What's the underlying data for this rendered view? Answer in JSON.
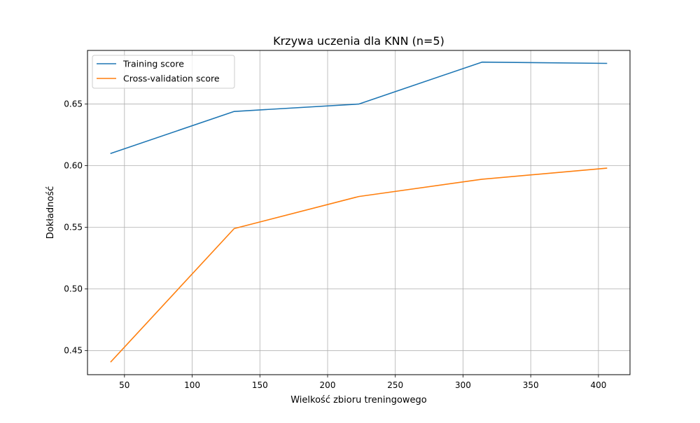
{
  "chart_data": {
    "type": "line",
    "title": "Krzywa uczenia dla KNN (n=5)",
    "xlabel": "Wielkość zbioru treningowego",
    "ylabel": "Dokładność",
    "xlim": [
      22.7,
      423.3
    ],
    "ylim": [
      0.4305,
      0.6935
    ],
    "xticks": [
      50,
      100,
      150,
      200,
      250,
      300,
      350,
      400
    ],
    "yticks": [
      0.45,
      0.5,
      0.55,
      0.6,
      0.65
    ],
    "ytick_labels": [
      "0.45",
      "0.50",
      "0.55",
      "0.60",
      "0.65"
    ],
    "grid": true,
    "legend_position": "upper left",
    "x": [
      40,
      131,
      223,
      314,
      406
    ],
    "series": [
      {
        "name": "Training score",
        "color": "#1f77b4",
        "values": [
          0.61,
          0.644,
          0.65,
          0.684,
          0.683
        ]
      },
      {
        "name": "Cross-validation score",
        "color": "#ff7f0e",
        "values": [
          0.441,
          0.549,
          0.575,
          0.589,
          0.598
        ]
      }
    ]
  }
}
